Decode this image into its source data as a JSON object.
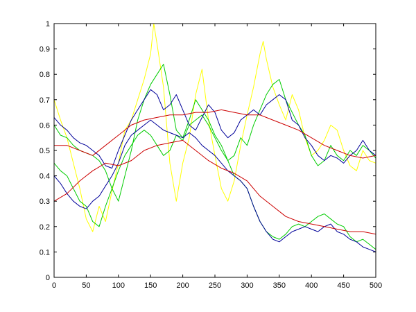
{
  "chart_data": {
    "type": "line",
    "xlim": [
      0,
      500
    ],
    "ylim": [
      0,
      1
    ],
    "xticks": [
      0,
      50,
      100,
      150,
      200,
      250,
      300,
      350,
      400,
      450,
      500
    ],
    "yticks": [
      0,
      0.1,
      0.2,
      0.3,
      0.4,
      0.5,
      0.6,
      0.7,
      0.8,
      0.9,
      1
    ],
    "xtick_labels": [
      "0",
      "50",
      "100",
      "150",
      "200",
      "250",
      "300",
      "350",
      "400",
      "450",
      "500"
    ],
    "ytick_labels": [
      "0",
      "0.1",
      "0.2",
      "0.3",
      "0.4",
      "0.5",
      "0.6",
      "0.7",
      "0.8",
      "0.9",
      "1"
    ],
    "grid": false,
    "series": [
      {
        "color": "#ffff00",
        "x": [
          0,
          10,
          20,
          30,
          40,
          50,
          60,
          70,
          80,
          90,
          100,
          110,
          120,
          130,
          140,
          150,
          155,
          160,
          170,
          180,
          190,
          200,
          210,
          220,
          230,
          240,
          250,
          260,
          270,
          280,
          290,
          300,
          310,
          320,
          325,
          330,
          340,
          350,
          360,
          370,
          380,
          390,
          400,
          410,
          420,
          430,
          440,
          450,
          460,
          470,
          480,
          490,
          500
        ],
        "y": [
          0.7,
          0.62,
          0.55,
          0.45,
          0.35,
          0.23,
          0.18,
          0.28,
          0.22,
          0.34,
          0.45,
          0.58,
          0.62,
          0.7,
          0.78,
          0.88,
          1.0,
          0.92,
          0.75,
          0.45,
          0.3,
          0.45,
          0.55,
          0.72,
          0.82,
          0.62,
          0.48,
          0.35,
          0.3,
          0.38,
          0.52,
          0.64,
          0.75,
          0.88,
          0.93,
          0.86,
          0.75,
          0.68,
          0.62,
          0.72,
          0.66,
          0.55,
          0.48,
          0.5,
          0.54,
          0.6,
          0.58,
          0.5,
          0.44,
          0.42,
          0.5,
          0.46,
          0.45
        ]
      },
      {
        "color": "#00cc00",
        "x": [
          0,
          10,
          20,
          30,
          40,
          50,
          60,
          70,
          80,
          90,
          100,
          110,
          120,
          130,
          140,
          150,
          160,
          170,
          180,
          190,
          200,
          210,
          220,
          230,
          240,
          250,
          260,
          270,
          280,
          290,
          300,
          310,
          320,
          330,
          340,
          350,
          360,
          370,
          380,
          390,
          400,
          410,
          420,
          430,
          440,
          450,
          460,
          470,
          480,
          490,
          500
        ],
        "y": [
          0.6,
          0.56,
          0.55,
          0.52,
          0.5,
          0.49,
          0.48,
          0.46,
          0.42,
          0.35,
          0.3,
          0.4,
          0.5,
          0.62,
          0.7,
          0.76,
          0.8,
          0.84,
          0.72,
          0.58,
          0.55,
          0.62,
          0.7,
          0.66,
          0.62,
          0.56,
          0.52,
          0.46,
          0.48,
          0.55,
          0.52,
          0.6,
          0.66,
          0.72,
          0.76,
          0.78,
          0.7,
          0.65,
          0.6,
          0.56,
          0.48,
          0.44,
          0.46,
          0.52,
          0.48,
          0.46,
          0.5,
          0.48,
          0.52,
          0.5,
          0.47
        ]
      },
      {
        "color": "#00cc00",
        "x": [
          0,
          10,
          20,
          30,
          40,
          50,
          60,
          70,
          80,
          90,
          100,
          110,
          120,
          130,
          140,
          150,
          160,
          170,
          180,
          190,
          200,
          210,
          220,
          230,
          240,
          250,
          260,
          270,
          280,
          290,
          300,
          310,
          320,
          330,
          340,
          350,
          360,
          370,
          380,
          390,
          400,
          410,
          420,
          430,
          440,
          450,
          460,
          470,
          480,
          490,
          500
        ],
        "y": [
          0.45,
          0.42,
          0.4,
          0.35,
          0.3,
          0.28,
          0.22,
          0.2,
          0.28,
          0.35,
          0.42,
          0.48,
          0.52,
          0.56,
          0.58,
          0.56,
          0.52,
          0.48,
          0.5,
          0.56,
          0.54,
          0.6,
          0.62,
          0.64,
          0.6,
          0.55,
          0.5,
          0.46,
          0.4,
          0.38,
          0.35,
          0.28,
          0.22,
          0.18,
          0.16,
          0.15,
          0.17,
          0.2,
          0.21,
          0.2,
          0.22,
          0.24,
          0.25,
          0.23,
          0.21,
          0.2,
          0.16,
          0.14,
          0.15,
          0.13,
          0.11
        ]
      },
      {
        "color": "#000099",
        "x": [
          0,
          10,
          20,
          30,
          40,
          50,
          60,
          70,
          80,
          90,
          100,
          110,
          120,
          130,
          140,
          150,
          160,
          170,
          180,
          190,
          200,
          210,
          220,
          230,
          240,
          250,
          260,
          270,
          280,
          290,
          300,
          310,
          320,
          330,
          340,
          350,
          360,
          370,
          380,
          390,
          400,
          410,
          420,
          430,
          440,
          450,
          460,
          470,
          480,
          490,
          500
        ],
        "y": [
          0.63,
          0.6,
          0.58,
          0.55,
          0.53,
          0.52,
          0.5,
          0.48,
          0.44,
          0.43,
          0.5,
          0.56,
          0.62,
          0.66,
          0.7,
          0.74,
          0.72,
          0.66,
          0.68,
          0.72,
          0.66,
          0.6,
          0.58,
          0.63,
          0.68,
          0.65,
          0.58,
          0.55,
          0.57,
          0.62,
          0.64,
          0.66,
          0.64,
          0.68,
          0.7,
          0.72,
          0.7,
          0.62,
          0.6,
          0.55,
          0.52,
          0.48,
          0.46,
          0.48,
          0.47,
          0.45,
          0.48,
          0.5,
          0.54,
          0.5,
          0.48
        ]
      },
      {
        "color": "#000099",
        "x": [
          0,
          10,
          20,
          30,
          40,
          50,
          60,
          70,
          80,
          90,
          100,
          110,
          120,
          130,
          140,
          150,
          160,
          170,
          180,
          190,
          200,
          210,
          220,
          230,
          240,
          250,
          260,
          270,
          280,
          290,
          300,
          310,
          320,
          330,
          340,
          350,
          360,
          370,
          380,
          390,
          400,
          410,
          420,
          430,
          440,
          450,
          460,
          470,
          480,
          490,
          500
        ],
        "y": [
          0.4,
          0.37,
          0.33,
          0.3,
          0.28,
          0.27,
          0.3,
          0.32,
          0.36,
          0.4,
          0.45,
          0.52,
          0.56,
          0.58,
          0.6,
          0.62,
          0.6,
          0.58,
          0.57,
          0.56,
          0.55,
          0.57,
          0.55,
          0.52,
          0.5,
          0.48,
          0.45,
          0.42,
          0.4,
          0.38,
          0.35,
          0.28,
          0.22,
          0.18,
          0.15,
          0.14,
          0.16,
          0.18,
          0.19,
          0.2,
          0.19,
          0.18,
          0.2,
          0.21,
          0.18,
          0.17,
          0.15,
          0.14,
          0.12,
          0.11,
          0.1
        ]
      },
      {
        "color": "#cc0000",
        "x": [
          0,
          20,
          40,
          60,
          80,
          100,
          120,
          140,
          160,
          180,
          200,
          220,
          240,
          260,
          280,
          300,
          320,
          340,
          360,
          380,
          400,
          420,
          440,
          460,
          480,
          500
        ],
        "y": [
          0.52,
          0.52,
          0.5,
          0.48,
          0.52,
          0.56,
          0.6,
          0.62,
          0.63,
          0.64,
          0.64,
          0.65,
          0.65,
          0.66,
          0.65,
          0.64,
          0.64,
          0.62,
          0.6,
          0.58,
          0.55,
          0.52,
          0.5,
          0.48,
          0.47,
          0.48
        ]
      },
      {
        "color": "#cc0000",
        "x": [
          0,
          20,
          40,
          60,
          80,
          100,
          120,
          140,
          160,
          180,
          200,
          220,
          240,
          260,
          280,
          300,
          320,
          340,
          360,
          380,
          400,
          420,
          440,
          460,
          480,
          500
        ],
        "y": [
          0.3,
          0.33,
          0.38,
          0.42,
          0.45,
          0.44,
          0.46,
          0.5,
          0.52,
          0.53,
          0.54,
          0.5,
          0.46,
          0.43,
          0.41,
          0.38,
          0.32,
          0.28,
          0.24,
          0.22,
          0.21,
          0.2,
          0.19,
          0.18,
          0.18,
          0.17
        ]
      }
    ]
  }
}
